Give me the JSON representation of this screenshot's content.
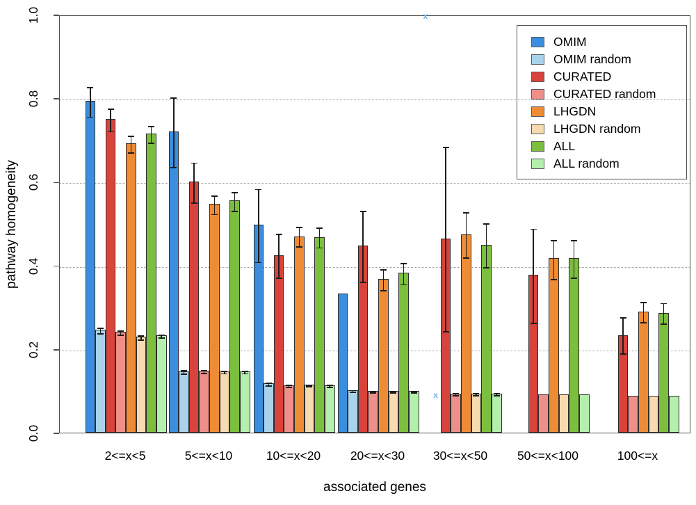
{
  "chart_data": {
    "type": "bar",
    "title": "",
    "xlabel": "associated genes",
    "ylabel": "pathway homogeneity",
    "ylim": [
      0.0,
      1.0
    ],
    "yticks": [
      0.0,
      0.2,
      0.4,
      0.6,
      0.8,
      1.0
    ],
    "grid": "horizontal dotted at 0.2 intervals",
    "legend_position": "top-right",
    "marker_shape": "x",
    "marker_color": "#6FAEE8",
    "categories": [
      "2<=x<5",
      "5<=x<10",
      "10<=x<20",
      "20<=x<30",
      "30<=x<50",
      "50<=x<100",
      "100<=x"
    ],
    "series": [
      {
        "name": "OMIM",
        "color": "#3B8EDE",
        "values": [
          0.793,
          0.72,
          0.498,
          0.333,
          null,
          null,
          null
        ],
        "errors": [
          [
            0.758,
            0.828
          ],
          [
            0.637,
            0.803
          ],
          [
            0.41,
            0.585
          ],
          null,
          null,
          null,
          null
        ],
        "markers": [
          null,
          null,
          null,
          null,
          1.0,
          null,
          null
        ]
      },
      {
        "name": "OMIM random",
        "color": "#A8D3EA",
        "values": [
          0.247,
          0.147,
          0.118,
          0.102,
          null,
          null,
          null
        ],
        "errors": [
          [
            0.24,
            0.253
          ],
          [
            0.143,
            0.151
          ],
          [
            0.115,
            0.121
          ],
          [
            0.1,
            0.104
          ],
          null,
          null,
          null
        ],
        "markers": [
          null,
          null,
          null,
          null,
          0.093,
          null,
          null
        ]
      },
      {
        "name": "CURATED",
        "color": "#D8433B",
        "values": [
          0.75,
          0.6,
          0.425,
          0.447,
          0.465,
          0.378,
          0.233
        ],
        "errors": [
          [
            0.723,
            0.777
          ],
          [
            0.552,
            0.648
          ],
          [
            0.373,
            0.478
          ],
          [
            0.363,
            0.532
          ],
          [
            0.245,
            0.685
          ],
          [
            0.265,
            0.49
          ],
          [
            0.192,
            0.278
          ]
        ],
        "markers": [
          null,
          null,
          null,
          null,
          null,
          null,
          null
        ]
      },
      {
        "name": "CURATED random",
        "color": "#EE8F89",
        "values": [
          0.241,
          0.148,
          0.114,
          0.1,
          0.094,
          0.092,
          0.089
        ],
        "errors": [
          [
            0.236,
            0.246
          ],
          [
            0.145,
            0.151
          ],
          [
            0.112,
            0.116
          ],
          [
            0.098,
            0.102
          ],
          [
            0.092,
            0.096
          ],
          null,
          null
        ],
        "markers": [
          null,
          null,
          null,
          null,
          null,
          null,
          null
        ]
      },
      {
        "name": "LHGDN",
        "color": "#EE8B35",
        "values": [
          0.692,
          0.547,
          0.47,
          0.368,
          0.475,
          0.417,
          0.29
        ],
        "errors": [
          [
            0.672,
            0.712
          ],
          [
            0.525,
            0.569
          ],
          [
            0.447,
            0.494
          ],
          [
            0.343,
            0.393
          ],
          [
            0.421,
            0.529
          ],
          [
            0.37,
            0.462
          ],
          [
            0.266,
            0.315
          ]
        ],
        "markers": [
          null,
          null,
          null,
          null,
          null,
          null,
          null
        ]
      },
      {
        "name": "LHGDN random",
        "color": "#F6DBB1",
        "values": [
          0.229,
          0.147,
          0.115,
          0.1,
          0.094,
          0.092,
          0.089
        ],
        "errors": [
          [
            0.224,
            0.234
          ],
          [
            0.144,
            0.15
          ],
          [
            0.113,
            0.117
          ],
          [
            0.098,
            0.102
          ],
          [
            0.092,
            0.096
          ],
          null,
          null
        ],
        "markers": [
          null,
          null,
          null,
          null,
          null,
          null,
          null
        ]
      },
      {
        "name": "ALL",
        "color": "#7CBE3E",
        "values": [
          0.715,
          0.555,
          0.468,
          0.382,
          0.45,
          0.418,
          0.287
        ],
        "errors": [
          [
            0.695,
            0.735
          ],
          [
            0.533,
            0.578
          ],
          [
            0.445,
            0.492
          ],
          [
            0.357,
            0.407
          ],
          [
            0.398,
            0.502
          ],
          [
            0.373,
            0.463
          ],
          [
            0.263,
            0.312
          ]
        ],
        "markers": [
          null,
          null,
          null,
          null,
          null,
          null,
          null
        ]
      },
      {
        "name": "ALL random",
        "color": "#B5EFAE",
        "values": [
          0.233,
          0.147,
          0.114,
          0.1,
          0.094,
          0.092,
          0.089
        ],
        "errors": [
          [
            0.229,
            0.237
          ],
          [
            0.144,
            0.15
          ],
          [
            0.112,
            0.116
          ],
          [
            0.098,
            0.102
          ],
          [
            0.092,
            0.096
          ],
          null,
          null
        ],
        "markers": [
          null,
          null,
          null,
          null,
          null,
          null,
          null
        ]
      }
    ]
  }
}
